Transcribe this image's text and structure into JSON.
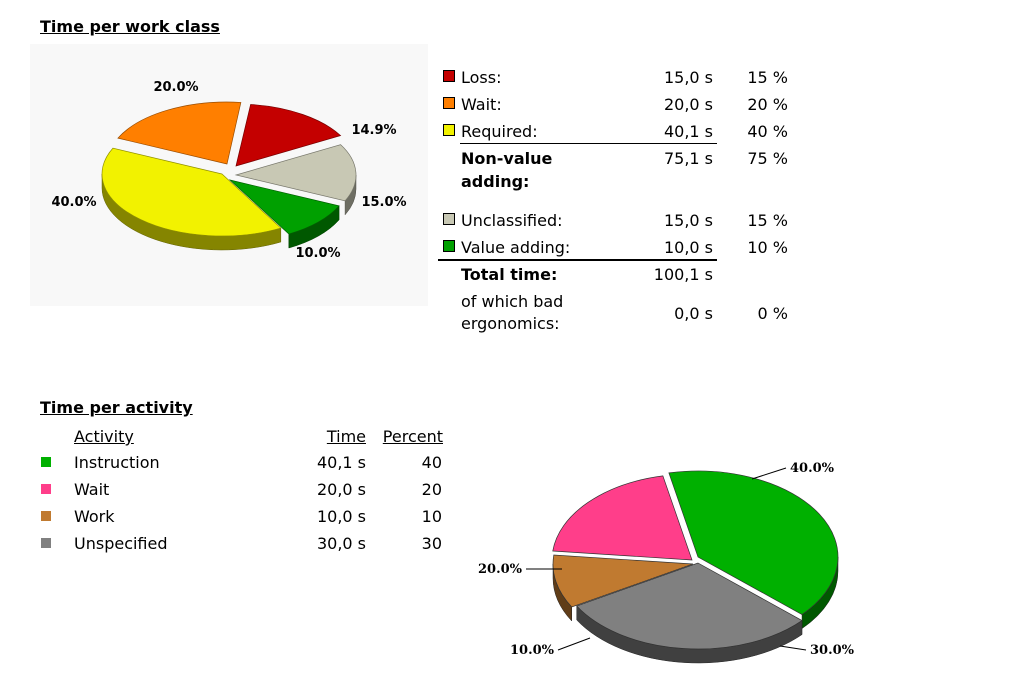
{
  "work_class": {
    "title": "Time per work class",
    "legend": [
      {
        "label": "Loss:",
        "time": "15,0 s",
        "percent": "15 %",
        "color": "#c40000"
      },
      {
        "label": "Wait:",
        "time": "20,0 s",
        "percent": "20 %",
        "color": "#ff7f00"
      },
      {
        "label": "Required:",
        "time": "40,1 s",
        "percent": "40 %",
        "color": "#f2f200"
      }
    ],
    "subtotal": {
      "label_line1": "Non-value",
      "label_line2": "adding:",
      "time": "75,1 s",
      "percent": "75 %"
    },
    "legend2": [
      {
        "label": "Unclassified:",
        "time": "15,0 s",
        "percent": "15 %",
        "color": "#c8c8b4"
      },
      {
        "label": "Value adding:",
        "time": "10,0 s",
        "percent": "10 %",
        "color": "#00a000"
      }
    ],
    "total": {
      "label": "Total time:",
      "time": "100,1 s"
    },
    "bad": {
      "label_line1": "of which bad",
      "label_line2": "ergonomics:",
      "time": "0,0 s",
      "percent": "0 %"
    }
  },
  "activity": {
    "title": "Time per activity",
    "headers": {
      "activity": "Activity",
      "time": "Time",
      "percent": "Percent"
    },
    "rows": [
      {
        "label": "Instruction",
        "time": "40,1 s",
        "percent": "40",
        "color": "#00b000"
      },
      {
        "label": "Wait",
        "time": "20,0 s",
        "percent": "20",
        "color": "#ff3e8a"
      },
      {
        "label": "Work",
        "time": "10,0 s",
        "percent": "10",
        "color": "#c07a30"
      },
      {
        "label": "Unspecified",
        "time": "30,0 s",
        "percent": "30",
        "color": "#808080"
      }
    ]
  },
  "chart_data": [
    {
      "type": "pie",
      "title": "Time per work class",
      "slices": [
        {
          "label": "14.9%",
          "value": 14.9,
          "color": "#c40000"
        },
        {
          "label": "15.0%",
          "value": 15.0,
          "color": "#c8c8b4"
        },
        {
          "label": "10.0%",
          "value": 10.0,
          "color": "#00a000"
        },
        {
          "label": "40.0%",
          "value": 40.0,
          "color": "#f2f200"
        },
        {
          "label": "20.0%",
          "value": 20.0,
          "color": "#ff7f00"
        }
      ]
    },
    {
      "type": "pie",
      "title": "Time per activity",
      "slices": [
        {
          "label": "40.0%",
          "value": 40.0,
          "color": "#00b000"
        },
        {
          "label": "30.0%",
          "value": 30.0,
          "color": "#808080"
        },
        {
          "label": "10.0%",
          "value": 10.0,
          "color": "#c07a30"
        },
        {
          "label": "20.0%",
          "value": 20.0,
          "color": "#ff3e8a"
        }
      ]
    }
  ]
}
